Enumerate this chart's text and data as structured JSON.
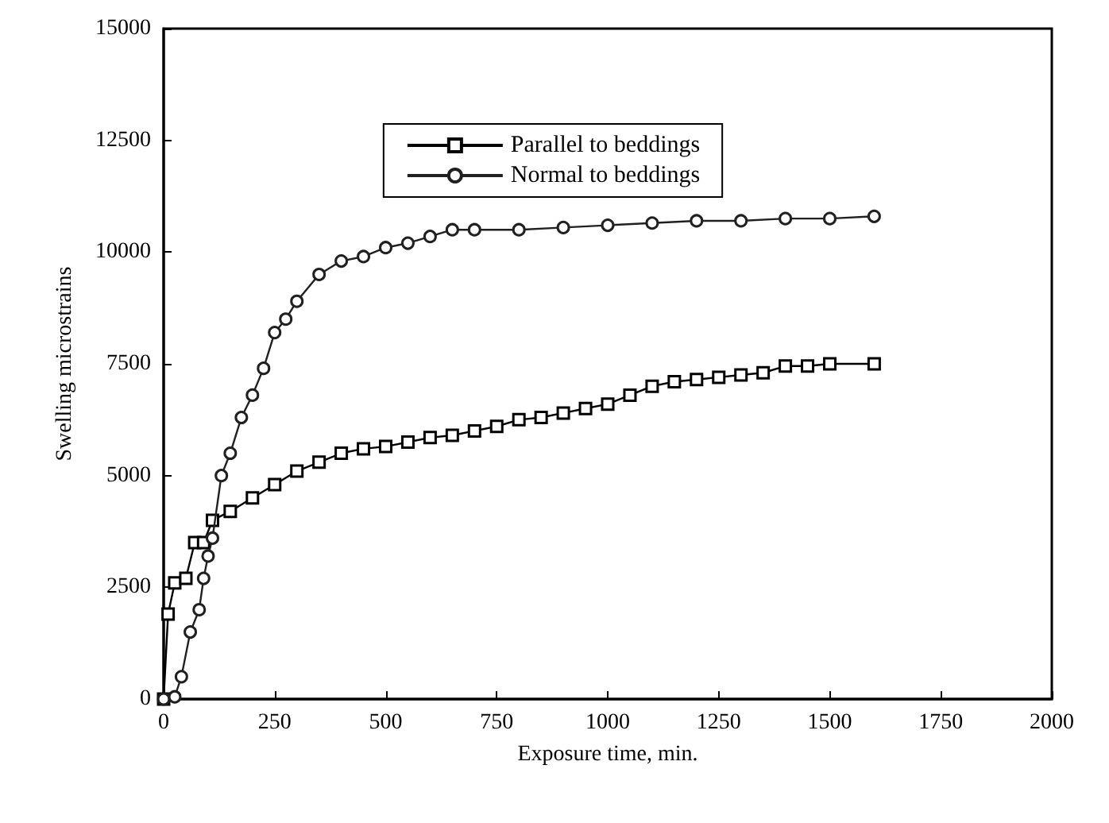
{
  "chart_data": {
    "type": "line",
    "xlabel": "Exposure time, min.",
    "ylabel": "Swelling microstrains",
    "xlim": [
      0,
      2000
    ],
    "ylim": [
      0,
      15000
    ],
    "xticks": [
      0,
      250,
      500,
      750,
      1000,
      1250,
      1500,
      1750,
      2000
    ],
    "yticks": [
      0,
      2500,
      5000,
      7500,
      10000,
      12500,
      15000
    ],
    "grid": false,
    "legend": "top",
    "line_style": "solid",
    "series": [
      {
        "name": "Parallel to beddings",
        "color": "#000000",
        "marker": "square",
        "x": [
          0,
          10,
          25,
          50,
          70,
          90,
          110,
          150,
          200,
          250,
          300,
          350,
          400,
          450,
          500,
          550,
          600,
          650,
          700,
          750,
          800,
          850,
          900,
          950,
          1000,
          1050,
          1100,
          1150,
          1200,
          1250,
          1300,
          1350,
          1400,
          1450,
          1500,
          1600
        ],
        "values": [
          0,
          1900,
          2600,
          2700,
          3500,
          3500,
          4000,
          4200,
          4500,
          4800,
          5100,
          5300,
          5500,
          5600,
          5650,
          5750,
          5850,
          5900,
          6000,
          6100,
          6250,
          6300,
          6400,
          6500,
          6600,
          6800,
          7000,
          7100,
          7150,
          7200,
          7250,
          7300,
          7450,
          7450,
          7500,
          7500
        ]
      },
      {
        "name": "Normal to beddings",
        "color": "#202020",
        "marker": "circle",
        "x": [
          0,
          25,
          40,
          60,
          80,
          90,
          100,
          110,
          130,
          150,
          175,
          200,
          225,
          250,
          275,
          300,
          350,
          400,
          450,
          500,
          550,
          600,
          650,
          700,
          800,
          900,
          1000,
          1100,
          1200,
          1300,
          1400,
          1500,
          1600
        ],
        "values": [
          0,
          50,
          500,
          1500,
          2000,
          2700,
          3200,
          3600,
          5000,
          5500,
          6300,
          6800,
          7400,
          8200,
          8500,
          8900,
          9500,
          9800,
          9900,
          10100,
          10200,
          10350,
          10500,
          10500,
          10500,
          10550,
          10600,
          10650,
          10700,
          10700,
          10750,
          10750,
          10800
        ]
      }
    ]
  }
}
